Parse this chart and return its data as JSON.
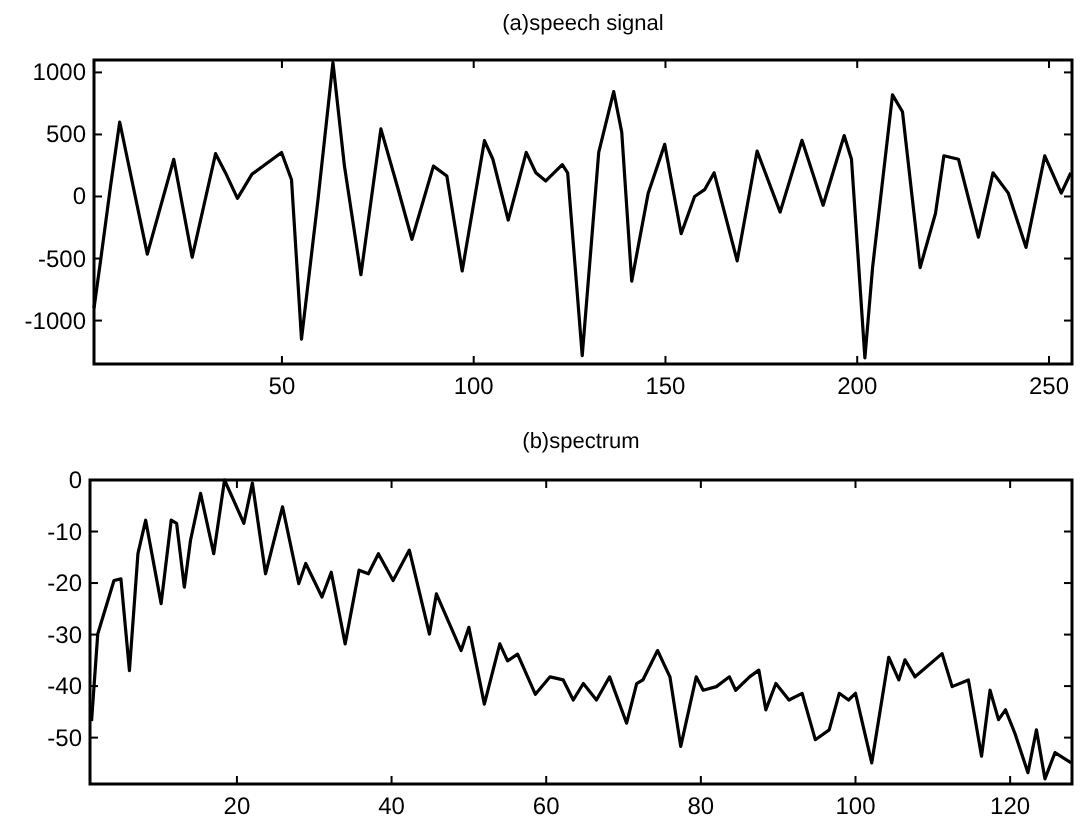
{
  "chart_data": [
    {
      "type": "line",
      "title": "(a)speech signal",
      "xlim": [
        1,
        256
      ],
      "ylim": [
        -1350,
        1100
      ],
      "xticks": [
        50,
        100,
        150,
        200,
        250
      ],
      "yticks": [
        -1000,
        -500,
        0,
        500,
        1000
      ],
      "grid": false,
      "series": [
        {
          "color": "#000000",
          "x": [
            1,
            2.7,
            5.3,
            7.7,
            14.9,
            21.8,
            26.6,
            32.7,
            35.3,
            38.4,
            42.2,
            49.9,
            52.5,
            55.1,
            59.4,
            63.3,
            66.3,
            70.6,
            75.8,
            80.1,
            83.9,
            89.5,
            93,
            97,
            102.8,
            105,
            109,
            113.7,
            116.2,
            118.8,
            123.1,
            124.5,
            128.3,
            132.6,
            136.5,
            138.6,
            141.2,
            145.5,
            149.8,
            154.1,
            157.6,
            160.2,
            162.7,
            168.7,
            173.9,
            179.9,
            185.6,
            191.1,
            196.6,
            198.5,
            202,
            204,
            209.2,
            211.8,
            216.4,
            220.4,
            222.6,
            226.4,
            231.6,
            235.4,
            239.4,
            244,
            248.9,
            253.2,
            255.7
          ],
          "values": [
            -900,
            -520,
            80,
            600,
            -465,
            300,
            -490,
            345,
            190,
            -15,
            180,
            355,
            135,
            -1150,
            -25,
            1080,
            245,
            -630,
            545,
            80,
            -345,
            245,
            165,
            -600,
            450,
            300,
            -190,
            355,
            191,
            125,
            257,
            191,
            -1283,
            355,
            846,
            519,
            -683,
            27,
            420,
            -300,
            0,
            55,
            191,
            -519,
            366,
            -126,
            453,
            -71,
            491,
            300,
            -1300,
            -573,
            819,
            683,
            -573,
            -137,
            328,
            300,
            -328,
            191,
            27,
            -410,
            328,
            27,
            191
          ]
        }
      ]
    },
    {
      "type": "line",
      "title": "(b)spectrum",
      "xlim": [
        1,
        128
      ],
      "ylim": [
        -59,
        0
      ],
      "xticks": [
        20,
        40,
        60,
        80,
        100,
        120
      ],
      "yticks": [
        -50,
        -40,
        -30,
        -20,
        -10,
        0
      ],
      "grid": false,
      "series": [
        {
          "color": "#000000",
          "x": [
            1.2,
            2,
            4.1,
            5,
            6.1,
            7.2,
            8.2,
            10.2,
            11.5,
            12.2,
            13.2,
            14,
            15.3,
            17,
            18.4,
            20.9,
            22,
            23.7,
            25.9,
            28,
            28.9,
            31,
            32.2,
            34,
            35.8,
            37,
            38.3,
            40.2,
            42.3,
            44.9,
            45.8,
            49,
            50,
            52,
            54,
            55,
            56.3,
            58.6,
            60.5,
            62.2,
            63.5,
            64.8,
            66.5,
            68.2,
            70.4,
            71.7,
            72.5,
            74.4,
            76,
            77.4,
            79.4,
            80.3,
            82,
            83.7,
            84.5,
            86.3,
            87.5,
            88.4,
            89.7,
            91.4,
            93.1,
            94.8,
            96.6,
            97.9,
            99.1,
            100,
            102.1,
            104.3,
            105.6,
            106.4,
            107.7,
            111.2,
            112.5,
            114.6,
            116.3,
            117.4,
            118.5,
            119.4,
            120.6,
            122.3,
            123.4,
            124.5,
            125.8,
            127.9
          ],
          "values": [
            -46.8,
            -29.9,
            -19.5,
            -19.2,
            -37,
            -14.3,
            -7.8,
            -24,
            -7.8,
            -8.4,
            -20.8,
            -11.7,
            -2.6,
            -14.3,
            0,
            -8.4,
            -0.6,
            -18.2,
            -5.2,
            -20.1,
            -16.2,
            -22.7,
            -17.9,
            -31.8,
            -17.5,
            -18.2,
            -14.3,
            -19.5,
            -13.6,
            -29.9,
            -22.1,
            -33.1,
            -28.6,
            -43.5,
            -31.8,
            -35.1,
            -33.8,
            -41.6,
            -38.2,
            -38.8,
            -42.7,
            -39.5,
            -42.7,
            -38.2,
            -47.2,
            -39.5,
            -38.8,
            -33.1,
            -38.2,
            -51.7,
            -38.2,
            -40.8,
            -40.1,
            -38.2,
            -40.8,
            -38.2,
            -36.9,
            -44.6,
            -39.5,
            -42.7,
            -41.4,
            -50.4,
            -48.5,
            -41.4,
            -42.7,
            -41.4,
            -54.9,
            -34.4,
            -38.8,
            -34.9,
            -38.2,
            -33.7,
            -40.1,
            -38.8,
            -53.6,
            -40.8,
            -46.5,
            -44.6,
            -49.1,
            -56.8,
            -48.5,
            -58,
            -52.9,
            -54.9
          ]
        }
      ]
    }
  ]
}
